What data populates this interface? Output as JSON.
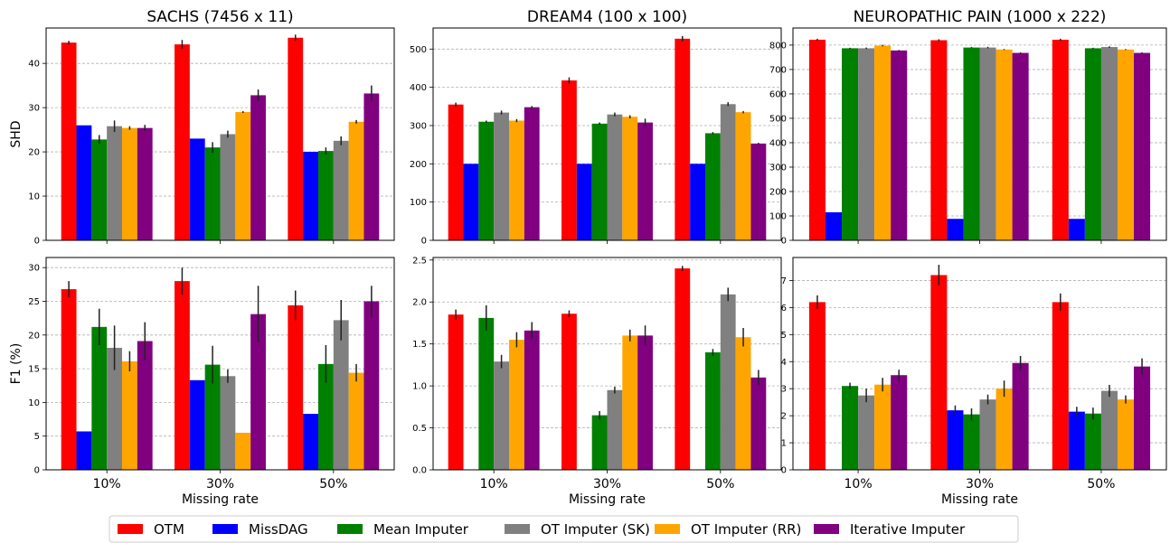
{
  "colors": {
    "OTM": "#ff0000",
    "MissDAG": "#0000ff",
    "Mean Imputer": "#008000",
    "OT Imputer (SK)": "#808080",
    "OT Imputer (RR)": "#ffa500",
    "Iterative Imputer": "#800080"
  },
  "legend": [
    "OTM",
    "MissDAG",
    "Mean Imputer",
    "OT Imputer (SK)",
    "OT Imputer (RR)",
    "Iterative Imputer"
  ],
  "chart_data": [
    {
      "type": "bar",
      "panel": "sachs-shd",
      "title": "SACHS (7456 x 11)",
      "ylabel": "SHD",
      "xlabel": "",
      "categories": [
        "10%",
        "30%",
        "50%"
      ],
      "ylim": [
        0,
        48
      ],
      "yticks": [
        0,
        10,
        20,
        30,
        40
      ],
      "grid": true,
      "show_xticklabels": false,
      "series": [
        {
          "name": "OTM",
          "values": [
            44.7,
            44.3,
            45.8
          ],
          "err": [
            0.4,
            1.0,
            0.7
          ]
        },
        {
          "name": "MissDAG",
          "values": [
            26.0,
            23.0,
            20.0
          ],
          "err": [
            0,
            0,
            0
          ]
        },
        {
          "name": "Mean Imputer",
          "values": [
            22.8,
            21.0,
            20.2
          ],
          "err": [
            1.0,
            1.2,
            0.8
          ]
        },
        {
          "name": "OT Imputer (SK)",
          "values": [
            25.8,
            24.0,
            22.5
          ],
          "err": [
            1.3,
            0.8,
            1.0
          ]
        },
        {
          "name": "OT Imputer (RR)",
          "values": [
            25.4,
            29.0,
            26.8
          ],
          "err": [
            0.4,
            0.2,
            0.4
          ]
        },
        {
          "name": "Iterative Imputer",
          "values": [
            25.4,
            32.8,
            33.2
          ],
          "err": [
            0.7,
            1.3,
            1.8
          ]
        }
      ]
    },
    {
      "type": "bar",
      "panel": "dream4-shd",
      "title": "DREAM4 (100 x 100)",
      "ylabel": "",
      "xlabel": "",
      "categories": [
        "10%",
        "30%",
        "50%"
      ],
      "ylim": [
        0,
        555
      ],
      "yticks": [
        0,
        100,
        200,
        300,
        400,
        500
      ],
      "grid": true,
      "show_xticklabels": false,
      "series": [
        {
          "name": "OTM",
          "values": [
            355,
            418,
            527
          ],
          "err": [
            5,
            8,
            7
          ]
        },
        {
          "name": "MissDAG",
          "values": [
            200,
            200,
            200
          ],
          "err": [
            0,
            0,
            0
          ]
        },
        {
          "name": "Mean Imputer",
          "values": [
            310,
            305,
            280
          ],
          "err": [
            3,
            3,
            3
          ]
        },
        {
          "name": "OT Imputer (SK)",
          "values": [
            334,
            329,
            356
          ],
          "err": [
            5,
            5,
            5
          ]
        },
        {
          "name": "OT Imputer (RR)",
          "values": [
            313,
            323,
            335
          ],
          "err": [
            4,
            4,
            3
          ]
        },
        {
          "name": "Iterative Imputer",
          "values": [
            348,
            308,
            253
          ],
          "err": [
            3,
            10,
            2
          ]
        }
      ]
    },
    {
      "type": "bar",
      "panel": "neuro-shd",
      "title": "NEUROPATHIC PAIN (1000 x 222)",
      "ylabel": "",
      "xlabel": "",
      "categories": [
        "10%",
        "30%",
        "50%"
      ],
      "ylim": [
        0,
        870
      ],
      "yticks": [
        0,
        100,
        200,
        300,
        400,
        500,
        600,
        700,
        800
      ],
      "grid": true,
      "show_xticklabels": false,
      "series": [
        {
          "name": "OTM",
          "values": [
            822,
            820,
            822
          ],
          "err": [
            4,
            4,
            4
          ]
        },
        {
          "name": "MissDAG",
          "values": [
            115,
            88,
            88
          ],
          "err": [
            0,
            0,
            0
          ]
        },
        {
          "name": "Mean Imputer",
          "values": [
            787,
            790,
            787
          ],
          "err": [
            2,
            2,
            2
          ]
        },
        {
          "name": "OT Imputer (SK)",
          "values": [
            787,
            790,
            792
          ],
          "err": [
            3,
            3,
            3
          ]
        },
        {
          "name": "OT Imputer (RR)",
          "values": [
            798,
            782,
            782
          ],
          "err": [
            3,
            2,
            2
          ]
        },
        {
          "name": "Iterative Imputer",
          "values": [
            778,
            768,
            768
          ],
          "err": [
            2,
            2,
            2
          ]
        }
      ]
    },
    {
      "type": "bar",
      "panel": "sachs-f1",
      "title": "",
      "ylabel": "F1 (%)",
      "xlabel": "Missing rate",
      "categories": [
        "10%",
        "30%",
        "50%"
      ],
      "ylim": [
        0,
        31.5
      ],
      "yticks": [
        0,
        5,
        10,
        15,
        20,
        25,
        30
      ],
      "grid": true,
      "show_xticklabels": true,
      "series": [
        {
          "name": "OTM",
          "values": [
            26.8,
            28.0,
            24.4
          ],
          "err": [
            1.2,
            2.0,
            2.2
          ]
        },
        {
          "name": "MissDAG",
          "values": [
            5.7,
            13.3,
            8.3
          ],
          "err": [
            0,
            0,
            0
          ]
        },
        {
          "name": "Mean Imputer",
          "values": [
            21.2,
            15.6,
            15.7
          ],
          "err": [
            2.7,
            2.8,
            2.8
          ]
        },
        {
          "name": "OT Imputer (SK)",
          "values": [
            18.1,
            13.9,
            22.2
          ],
          "err": [
            3.3,
            1.0,
            3.0
          ]
        },
        {
          "name": "OT Imputer (RR)",
          "values": [
            16.1,
            5.5,
            14.4
          ],
          "err": [
            1.5,
            0,
            1.3
          ]
        },
        {
          "name": "Iterative Imputer",
          "values": [
            19.1,
            23.1,
            25.0
          ],
          "err": [
            2.8,
            4.2,
            2.3
          ]
        }
      ]
    },
    {
      "type": "bar",
      "panel": "dream4-f1",
      "title": "",
      "ylabel": "",
      "xlabel": "Missing rate",
      "categories": [
        "10%",
        "30%",
        "50%"
      ],
      "ylim": [
        0,
        2.53
      ],
      "yticks": [
        0.0,
        0.5,
        1.0,
        1.5,
        2.0,
        2.5
      ],
      "grid": true,
      "show_xticklabels": true,
      "series": [
        {
          "name": "OTM",
          "values": [
            1.85,
            1.86,
            2.4
          ],
          "err": [
            0.06,
            0.04,
            0.03
          ]
        },
        {
          "name": "MissDAG",
          "values": [
            0,
            0,
            0
          ],
          "err": [
            0,
            0,
            0
          ]
        },
        {
          "name": "Mean Imputer",
          "values": [
            1.81,
            0.65,
            1.4
          ],
          "err": [
            0.15,
            0.05,
            0.04
          ]
        },
        {
          "name": "OT Imputer (SK)",
          "values": [
            1.29,
            0.95,
            2.09
          ],
          "err": [
            0.08,
            0.04,
            0.08
          ]
        },
        {
          "name": "OT Imputer (RR)",
          "values": [
            1.55,
            1.6,
            1.58
          ],
          "err": [
            0.09,
            0.07,
            0.11
          ]
        },
        {
          "name": "Iterative Imputer",
          "values": [
            1.66,
            1.6,
            1.1
          ],
          "err": [
            0.1,
            0.12,
            0.09
          ]
        }
      ]
    },
    {
      "type": "bar",
      "panel": "neuro-f1",
      "title": "",
      "ylabel": "",
      "xlabel": "Missing rate",
      "categories": [
        "10%",
        "30%",
        "50%"
      ],
      "ylim": [
        0,
        7.85
      ],
      "yticks": [
        0,
        1,
        2,
        3,
        4,
        5,
        6,
        7
      ],
      "grid": true,
      "show_xticklabels": true,
      "series": [
        {
          "name": "OTM",
          "values": [
            6.2,
            7.2,
            6.2
          ],
          "err": [
            0.25,
            0.38,
            0.32
          ]
        },
        {
          "name": "MissDAG",
          "values": [
            0,
            2.2,
            2.15
          ],
          "err": [
            0,
            0.18,
            0.18
          ]
        },
        {
          "name": "Mean Imputer",
          "values": [
            3.1,
            2.05,
            2.08
          ],
          "err": [
            0.12,
            0.22,
            0.22
          ]
        },
        {
          "name": "OT Imputer (SK)",
          "values": [
            2.75,
            2.6,
            2.92
          ],
          "err": [
            0.25,
            0.18,
            0.22
          ]
        },
        {
          "name": "OT Imputer (RR)",
          "values": [
            3.15,
            3.0,
            2.6
          ],
          "err": [
            0.25,
            0.3,
            0.15
          ]
        },
        {
          "name": "Iterative Imputer",
          "values": [
            3.5,
            3.95,
            3.82
          ],
          "err": [
            0.2,
            0.26,
            0.3
          ]
        }
      ]
    }
  ]
}
